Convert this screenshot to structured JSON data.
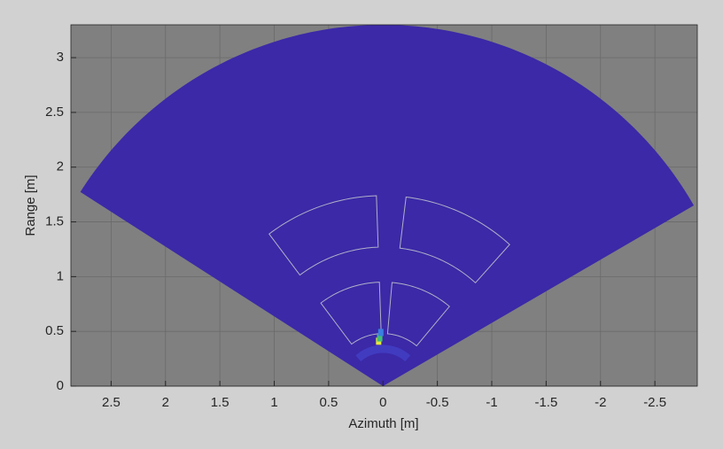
{
  "chart_data": {
    "type": "sector",
    "x_label": "Azimuth [m]",
    "y_label": "Range [m]",
    "xlim": [
      2.87,
      -2.89
    ],
    "ylim": [
      0,
      3.3
    ],
    "xticks": [
      2.5,
      2,
      1.5,
      1,
      0.5,
      0,
      -0.5,
      -1,
      -1.5,
      -2,
      -2.5
    ],
    "yticks": [
      0,
      0.5,
      1,
      1.5,
      2,
      2.5,
      3
    ],
    "grid": true,
    "background_color": "#808080",
    "sector": {
      "max_range": 3.3,
      "theta_span": [
        -60,
        57.5
      ],
      "color": "#3b29a7"
    },
    "zones": [
      {
        "r": [
          0.48,
          0.95
        ],
        "theta": [
          2,
          37
        ]
      },
      {
        "r": [
          0.48,
          0.95
        ],
        "theta": [
          -5,
          -40
        ]
      },
      {
        "r": [
          1.27,
          1.74
        ],
        "theta": [
          2,
          37
        ]
      },
      {
        "r": [
          1.27,
          1.74
        ],
        "theta": [
          -7,
          -42
        ]
      }
    ],
    "zone_color": "#b0b0c8",
    "hotspots": [
      {
        "x": 0.04,
        "y": 0.41,
        "color": "#e4e83c"
      },
      {
        "x": 0.03,
        "y": 0.44,
        "color": "#3fbf76"
      },
      {
        "x": 0.02,
        "y": 0.49,
        "color": "#3a7fe0"
      }
    ]
  }
}
